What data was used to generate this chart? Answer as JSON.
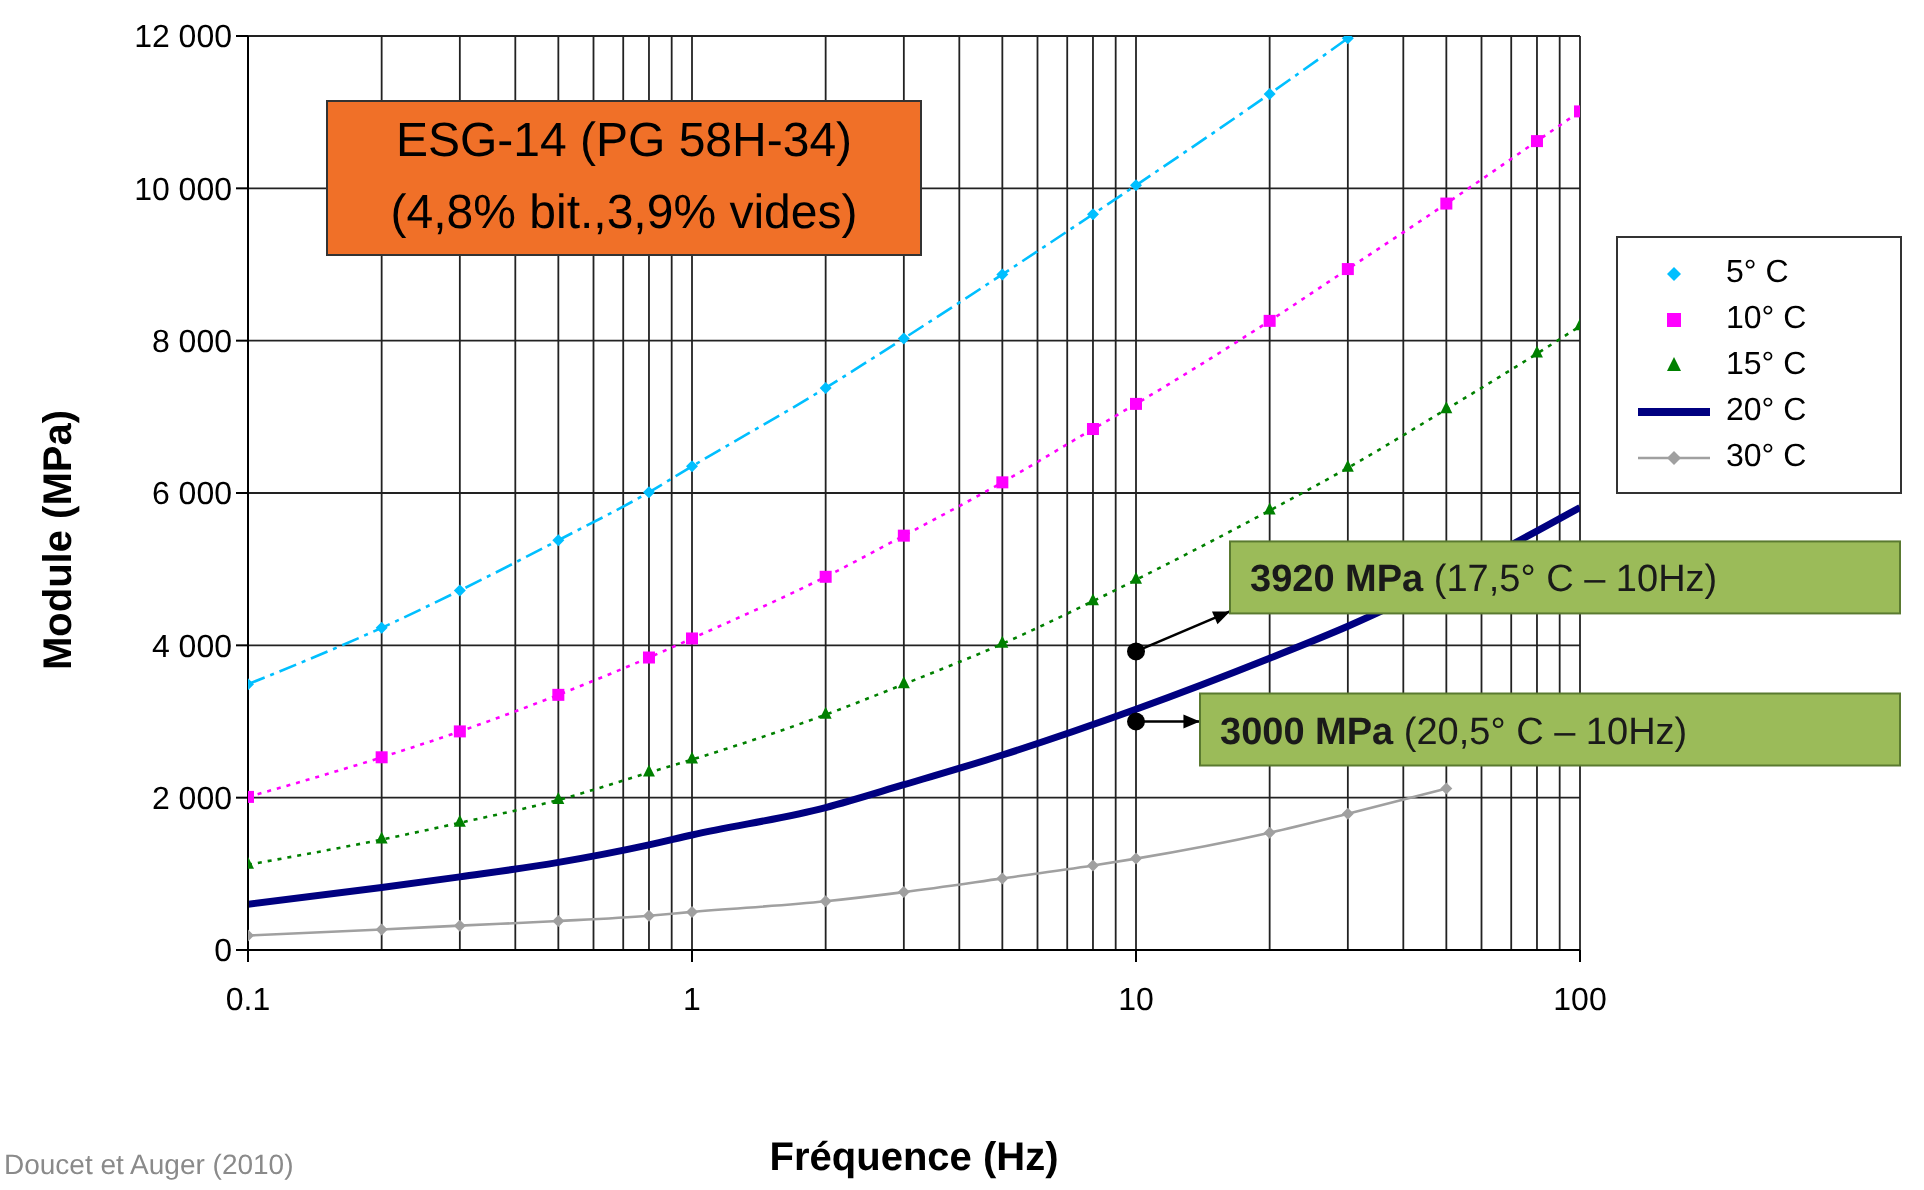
{
  "chart_data": {
    "type": "line",
    "title": "ESG-14 (PG 58H-34)",
    "subtitle": "(4,8% bit.,3,9% vides)",
    "xlabel": "Fréquence (Hz)",
    "ylabel": "Module (MPa)",
    "x": [
      0.1,
      0.2,
      0.3,
      0.5,
      0.8,
      1,
      2,
      3,
      5,
      8,
      10,
      20,
      30,
      50,
      80,
      100
    ],
    "series": [
      {
        "name": "5° C",
        "color": "#00bfff",
        "marker": "diamond",
        "line_style": "dashed",
        "values": [
          3490,
          4230,
          4720,
          5380,
          6010,
          6350,
          7380,
          8030,
          8870,
          9660,
          10040,
          11240,
          11970,
          null,
          null,
          null
        ]
      },
      {
        "name": "10° C",
        "color": "#ff00ff",
        "marker": "square",
        "line_style": "dotted",
        "values": [
          2010,
          2530,
          2870,
          3350,
          3840,
          4090,
          4900,
          5440,
          6140,
          6840,
          7170,
          8260,
          8940,
          9800,
          10620,
          11010
        ]
      },
      {
        "name": "15° C",
        "color": "#008000",
        "marker": "triangle",
        "line_style": "dotted",
        "values": [
          1120,
          1450,
          1670,
          1970,
          2330,
          2500,
          3090,
          3490,
          4020,
          4580,
          4860,
          5770,
          6330,
          7100,
          7830,
          8190
        ]
      },
      {
        "name": "20° C",
        "color": "#000080",
        "marker": "none",
        "line_style": "solid",
        "values": [
          600,
          820,
          960,
          1150,
          1380,
          1510,
          1870,
          2170,
          2560,
          null,
          3160,
          3830,
          4250,
          null,
          null,
          5810
        ]
      },
      {
        "name": "30° C",
        "color": "#a0a0a0",
        "marker": "diamond",
        "line_style": "solid",
        "values": [
          190,
          270,
          320,
          380,
          450,
          500,
          640,
          760,
          940,
          1110,
          1200,
          1540,
          1790,
          2120,
          null,
          null
        ]
      }
    ],
    "log": "x",
    "xlim": [
      0.1,
      100
    ],
    "xticks": [
      0.1,
      {
        "value": 0.2,
        "label": null
      },
      {
        "value": 0.3,
        "label": null
      },
      {
        "value": 0.4,
        "label": null
      },
      {
        "value": 0.5,
        "label": null
      },
      {
        "value": 0.6,
        "label": null
      },
      {
        "value": 0.7,
        "label": null
      },
      {
        "value": 0.8,
        "label": null
      },
      {
        "value": 0.9,
        "label": null
      },
      1,
      {
        "value": 2,
        "label": null
      },
      {
        "value": 3,
        "label": null
      },
      {
        "value": 4,
        "label": null
      },
      {
        "value": 5,
        "label": null
      },
      {
        "value": 6,
        "label": null
      },
      {
        "value": 7,
        "label": null
      },
      {
        "value": 8,
        "label": null
      },
      {
        "value": 9,
        "label": null
      },
      10,
      {
        "value": 20,
        "label": null
      },
      {
        "value": 30,
        "label": null
      },
      {
        "value": 40,
        "label": null
      },
      {
        "value": 50,
        "label": null
      },
      {
        "value": 60,
        "label": null
      },
      {
        "value": 70,
        "label": null
      },
      {
        "value": 80,
        "label": null
      },
      {
        "value": 90,
        "label": null
      },
      100
    ],
    "ylim": [
      0,
      12000
    ],
    "yticks": [
      0,
      {
        "value": 2000,
        "label": "2 000"
      },
      {
        "value": 4000,
        "label": "4 000"
      },
      {
        "value": 6000,
        "label": "6 000"
      },
      {
        "value": 8000,
        "label": "8 000"
      },
      {
        "value": 10000,
        "label": "10 000"
      },
      {
        "value": 12000,
        "label": "12 000"
      }
    ],
    "grid": true,
    "legend": "right",
    "annotations": [
      {
        "text": "3920 MPa (17,5° C – 10Hz)",
        "x": 10,
        "y": 3920
      },
      {
        "text": "3000 MPa (20,5° C – 10Hz)",
        "x": 10,
        "y": 3000
      },
      "Doucet et Auger (2010)"
    ]
  }
}
